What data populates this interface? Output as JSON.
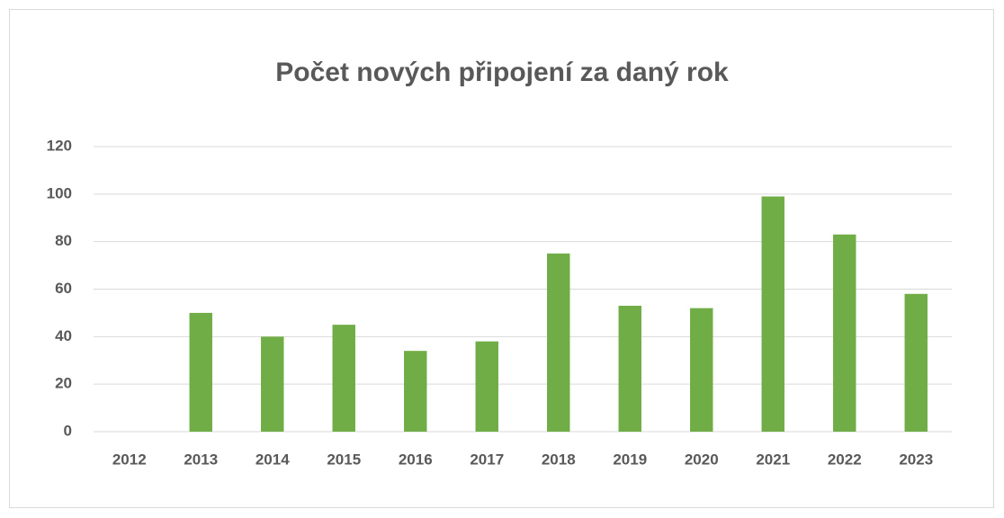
{
  "chart_data": {
    "type": "bar",
    "title": "Počet nových připojení za daný rok",
    "categories": [
      "2012",
      "2013",
      "2014",
      "2015",
      "2016",
      "2017",
      "2018",
      "2019",
      "2020",
      "2021",
      "2022",
      "2023"
    ],
    "values": [
      0,
      50,
      40,
      45,
      34,
      38,
      75,
      53,
      52,
      99,
      83,
      58
    ],
    "color": "#70ad47",
    "ylim": [
      0,
      120
    ],
    "yticks": [
      0,
      20,
      40,
      60,
      80,
      100,
      120
    ],
    "grid": true
  }
}
